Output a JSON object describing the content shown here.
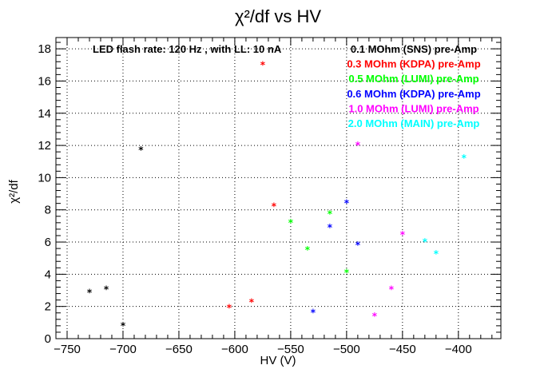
{
  "chart_data": {
    "type": "scatter",
    "title": "χ²/df vs HV",
    "xlabel": "HV (V)",
    "ylabel": "χ²/df",
    "xlim": [
      -760,
      -362
    ],
    "ylim": [
      0,
      18.7
    ],
    "xticks": [
      -750,
      -700,
      -650,
      -600,
      -550,
      -500,
      -450,
      -400
    ],
    "yticks": [
      0,
      2,
      4,
      6,
      8,
      10,
      12,
      14,
      16,
      18
    ],
    "grid": true,
    "legend_position": "top-right",
    "annotation": "LED flash rate: 120 Hz , with LL: 10 nA",
    "series": [
      {
        "name": "0.1 MOhm (SNS) pre-Amp",
        "color": "#000000",
        "points": [
          [
            -730,
            2.85
          ],
          [
            -715,
            3.05
          ],
          [
            -700,
            0.8
          ],
          [
            -684,
            11.7
          ]
        ]
      },
      {
        "name": "0.3 MOhm (KDPA) pre-Amp",
        "color": "#ff0000",
        "points": [
          [
            -605,
            1.9
          ],
          [
            -585,
            2.25
          ],
          [
            -575,
            17.0
          ],
          [
            -565,
            8.2
          ]
        ]
      },
      {
        "name": "0.5 MOhm (LUMI) pre-Amp",
        "color": "#00ff00",
        "points": [
          [
            -550,
            7.2
          ],
          [
            -535,
            5.5
          ],
          [
            -515,
            7.75
          ],
          [
            -500,
            4.1
          ]
        ]
      },
      {
        "name": "0.6 MOhm (KDPA) pre-Amp",
        "color": "#0000ff",
        "points": [
          [
            -530,
            1.6
          ],
          [
            -515,
            6.9
          ],
          [
            -500,
            8.4
          ],
          [
            -490,
            5.8
          ]
        ]
      },
      {
        "name": "1.0 MOhm (LUMI) pre-Amp",
        "color": "#ff00ff",
        "points": [
          [
            -490,
            12.0
          ],
          [
            -475,
            1.4
          ],
          [
            -460,
            3.05
          ],
          [
            -450,
            6.45
          ]
        ]
      },
      {
        "name": "2.0 MOhm (MAIN) pre-Amp",
        "color": "#00ffff",
        "points": [
          [
            -430,
            6.0
          ],
          [
            -420,
            5.25
          ],
          [
            -395,
            11.2
          ]
        ]
      }
    ]
  }
}
